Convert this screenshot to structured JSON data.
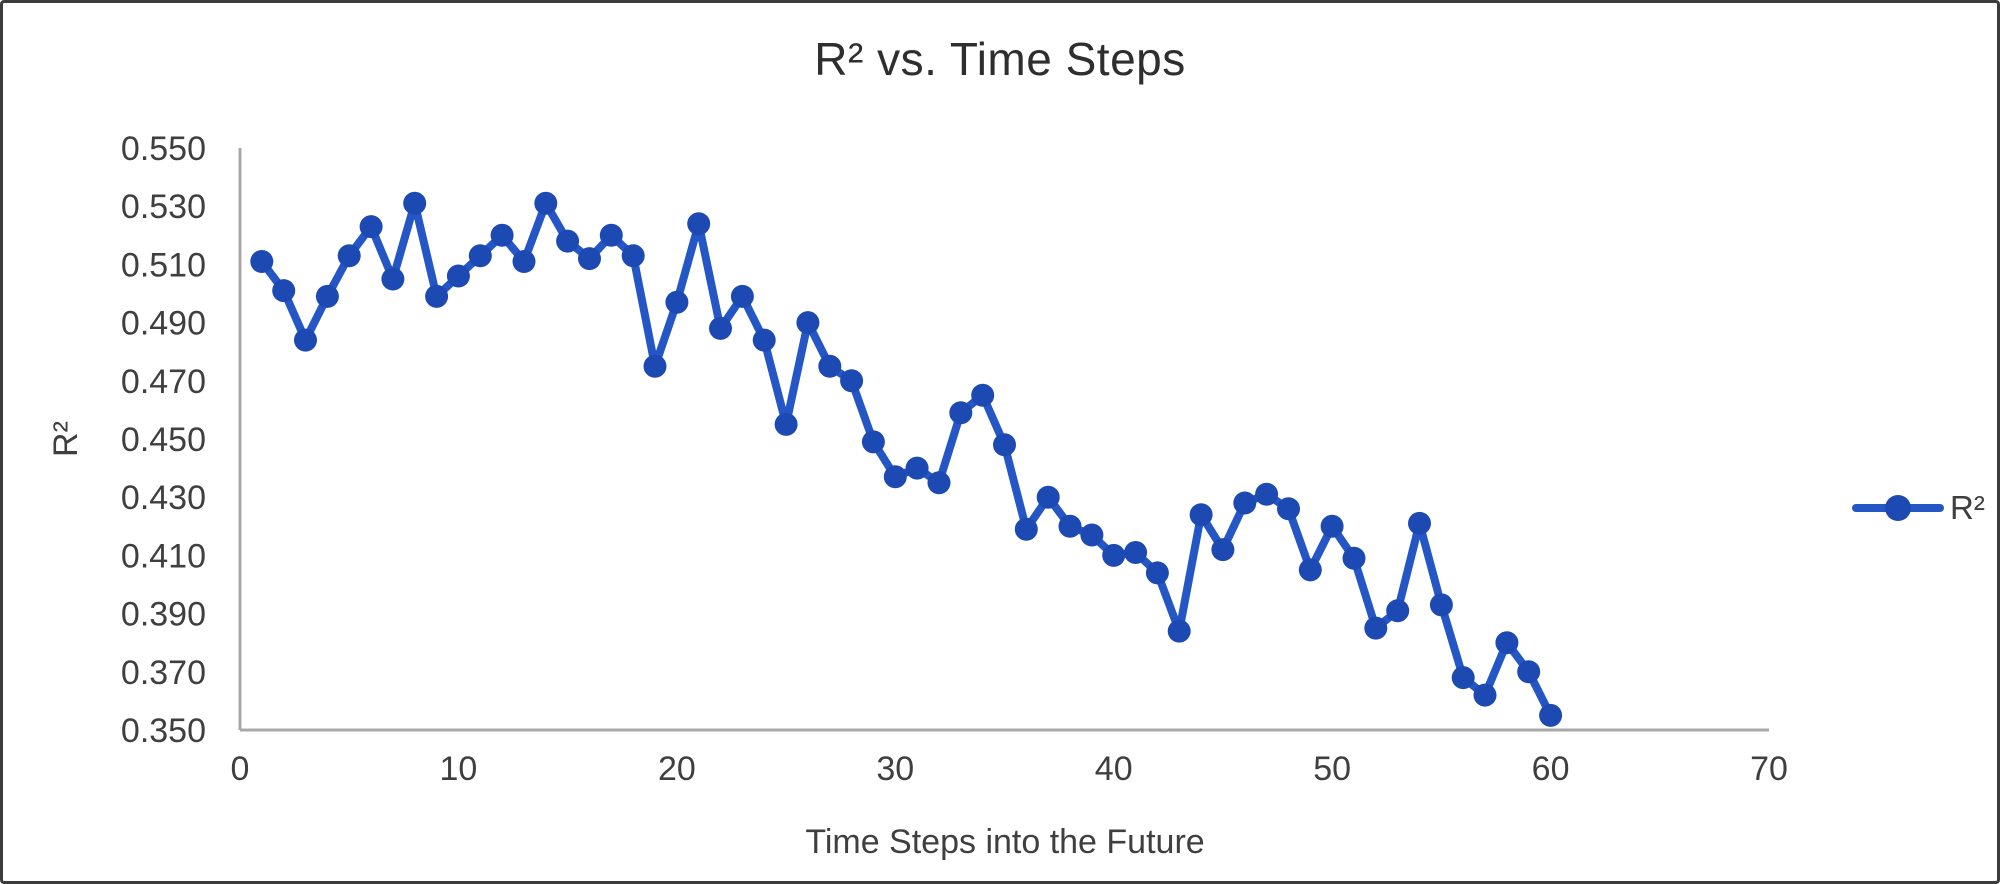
{
  "chart_data": {
    "type": "line",
    "title": "R² vs. Time Steps",
    "xlabel": "Time Steps into the Future",
    "ylabel": "R²",
    "x": [
      1,
      2,
      3,
      4,
      5,
      6,
      7,
      8,
      9,
      10,
      11,
      12,
      13,
      14,
      15,
      16,
      17,
      18,
      19,
      20,
      21,
      22,
      23,
      24,
      25,
      26,
      27,
      28,
      29,
      30,
      31,
      32,
      33,
      34,
      35,
      36,
      37,
      38,
      39,
      40,
      41,
      42,
      43,
      44,
      45,
      46,
      47,
      48,
      49,
      50,
      51,
      52,
      53,
      54,
      55,
      56,
      57,
      58,
      59,
      60
    ],
    "series": [
      {
        "name": "R²",
        "values": [
          0.511,
          0.501,
          0.484,
          0.499,
          0.513,
          0.523,
          0.505,
          0.531,
          0.499,
          0.506,
          0.513,
          0.52,
          0.511,
          0.531,
          0.518,
          0.512,
          0.52,
          0.513,
          0.475,
          0.497,
          0.524,
          0.488,
          0.499,
          0.484,
          0.455,
          0.49,
          0.475,
          0.47,
          0.449,
          0.437,
          0.44,
          0.435,
          0.459,
          0.465,
          0.448,
          0.419,
          0.43,
          0.42,
          0.417,
          0.41,
          0.411,
          0.404,
          0.384,
          0.424,
          0.412,
          0.428,
          0.431,
          0.426,
          0.405,
          0.42,
          0.409,
          0.385,
          0.391,
          0.421,
          0.393,
          0.368,
          0.362,
          0.38,
          0.37,
          0.355
        ]
      }
    ],
    "xlim": [
      0,
      70
    ],
    "ylim": [
      0.35,
      0.55
    ],
    "xticks": [
      0,
      10,
      20,
      30,
      40,
      50,
      60,
      70
    ],
    "ytick_labels": [
      "0.350",
      "0.370",
      "0.390",
      "0.410",
      "0.430",
      "0.450",
      "0.470",
      "0.490",
      "0.510",
      "0.530",
      "0.550"
    ],
    "grid": false,
    "legend_position": "right",
    "legend_label": "R²",
    "colors": {
      "line": "#2456c5",
      "marker": "#1c4ab2",
      "axis": "#a8a8a8",
      "tick_text": "#3f3f3f",
      "title_text": "#2e2e2e"
    }
  }
}
